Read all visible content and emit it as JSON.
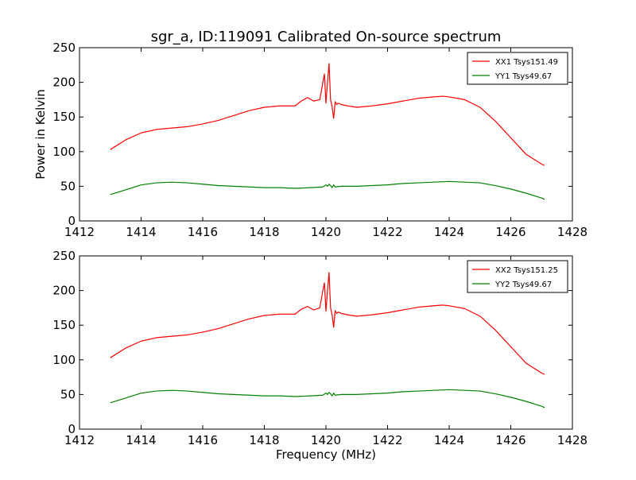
{
  "chart_data": {
    "type": "line",
    "title": "sgr_a, ID:119091 Calibrated On-source spectrum",
    "xlabel": "Frequency (MHz)",
    "ylabel": "Power in Kelvin",
    "x_ticks": [
      "1412",
      "1414",
      "1416",
      "1418",
      "1420",
      "1422",
      "1424",
      "1426",
      "1428"
    ],
    "y_ticks": [
      "0",
      "50",
      "100",
      "150",
      "200",
      "250"
    ],
    "panels": [
      {
        "xlim": [
          1412,
          1428
        ],
        "ylim": [
          0,
          250
        ],
        "legend_position": "top-right",
        "series": [
          {
            "name": "XX1 Tsys151.49",
            "color": "#ff0000",
            "x": [
              1413.0,
              1413.5,
              1414.0,
              1414.5,
              1415.0,
              1415.5,
              1416.0,
              1416.5,
              1417.0,
              1417.5,
              1418.0,
              1418.5,
              1419.0,
              1419.2,
              1419.4,
              1419.6,
              1419.8,
              1419.9,
              1419.95,
              1420.0,
              1420.05,
              1420.1,
              1420.15,
              1420.2,
              1420.25,
              1420.3,
              1420.35,
              1420.4,
              1420.5,
              1420.7,
              1421.0,
              1421.5,
              1422.0,
              1422.5,
              1423.0,
              1423.5,
              1423.8,
              1424.0,
              1424.5,
              1425.0,
              1425.5,
              1426.0,
              1426.5,
              1427.0,
              1427.1
            ],
            "y": [
              103,
              117,
              127,
              132,
              134,
              136,
              140,
              145,
              152,
              159,
              164,
              166,
              166,
              173,
              178,
              173,
              175,
              200,
              212,
              170,
              200,
              227,
              175,
              165,
              148,
              172,
              168,
              170,
              168,
              166,
              164,
              166,
              169,
              173,
              177,
              179,
              180,
              179,
              175,
              164,
              144,
              120,
              96,
              82,
              80
            ]
          },
          {
            "name": "YY1 Tsys49.67",
            "color": "#008000",
            "x": [
              1413.0,
              1413.5,
              1414.0,
              1414.5,
              1415.0,
              1415.5,
              1416.0,
              1416.5,
              1417.0,
              1417.5,
              1418.0,
              1418.5,
              1419.0,
              1419.5,
              1419.9,
              1420.0,
              1420.05,
              1420.1,
              1420.15,
              1420.2,
              1420.25,
              1420.3,
              1420.5,
              1421.0,
              1421.5,
              1422.0,
              1422.5,
              1423.0,
              1423.5,
              1424.0,
              1424.5,
              1425.0,
              1425.5,
              1426.0,
              1426.5,
              1427.0,
              1427.1
            ],
            "y": [
              38,
              45,
              52,
              55,
              56,
              55,
              53,
              51,
              50,
              49,
              48,
              48,
              47,
              48,
              49,
              52,
              50,
              53,
              51,
              48,
              52,
              49,
              50,
              50,
              51,
              52,
              54,
              55,
              56,
              57,
              56,
              55,
              51,
              46,
              40,
              33,
              31
            ]
          }
        ]
      },
      {
        "xlim": [
          1412,
          1428
        ],
        "ylim": [
          0,
          250
        ],
        "legend_position": "top-right",
        "series": [
          {
            "name": "XX2 Tsys151.25",
            "color": "#ff0000",
            "x": [
              1413.0,
              1413.5,
              1414.0,
              1414.5,
              1415.0,
              1415.5,
              1416.0,
              1416.5,
              1417.0,
              1417.5,
              1418.0,
              1418.5,
              1419.0,
              1419.2,
              1419.4,
              1419.6,
              1419.8,
              1419.9,
              1419.95,
              1420.0,
              1420.05,
              1420.1,
              1420.15,
              1420.2,
              1420.25,
              1420.3,
              1420.35,
              1420.4,
              1420.5,
              1420.7,
              1421.0,
              1421.5,
              1422.0,
              1422.5,
              1423.0,
              1423.5,
              1423.8,
              1424.0,
              1424.5,
              1425.0,
              1425.5,
              1426.0,
              1426.5,
              1427.0,
              1427.1
            ],
            "y": [
              103,
              117,
              127,
              132,
              134,
              136,
              140,
              145,
              152,
              159,
              164,
              166,
              166,
              173,
              177,
              172,
              175,
              200,
              211,
              170,
              200,
              226,
              175,
              165,
              147,
              171,
              167,
              169,
              167,
              165,
              163,
              165,
              168,
              172,
              176,
              178,
              179,
              178,
              174,
              163,
              143,
              119,
              95,
              81,
              79
            ]
          },
          {
            "name": "YY2 Tsys49.67",
            "color": "#008000",
            "x": [
              1413.0,
              1413.5,
              1414.0,
              1414.5,
              1415.0,
              1415.5,
              1416.0,
              1416.5,
              1417.0,
              1417.5,
              1418.0,
              1418.5,
              1419.0,
              1419.5,
              1419.9,
              1420.0,
              1420.05,
              1420.1,
              1420.15,
              1420.2,
              1420.25,
              1420.3,
              1420.5,
              1421.0,
              1421.5,
              1422.0,
              1422.5,
              1423.0,
              1423.5,
              1424.0,
              1424.5,
              1425.0,
              1425.5,
              1426.0,
              1426.5,
              1427.0,
              1427.1
            ],
            "y": [
              38,
              45,
              52,
              55,
              56,
              55,
              53,
              51,
              50,
              49,
              48,
              48,
              47,
              48,
              49,
              52,
              50,
              53,
              51,
              48,
              52,
              49,
              50,
              50,
              51,
              52,
              54,
              55,
              56,
              57,
              56,
              55,
              51,
              46,
              40,
              33,
              31
            ]
          }
        ]
      }
    ]
  }
}
